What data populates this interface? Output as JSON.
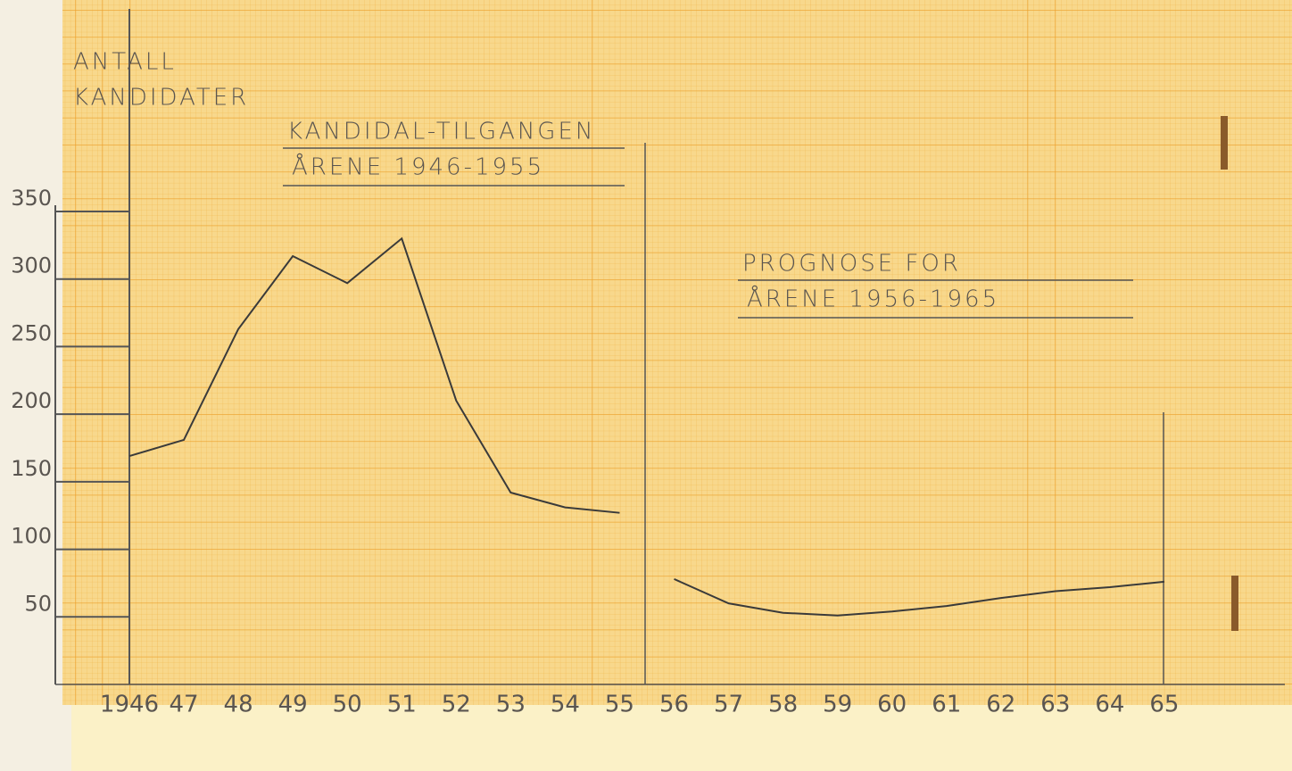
{
  "chart_data": {
    "type": "line",
    "ylabel": [
      "ANTALL",
      "KANDIDATER"
    ],
    "annotations": [
      {
        "lines": [
          "KANDIDAL-TILGANGEN",
          "ÅRENE 1946-1955"
        ]
      },
      {
        "lines": [
          "PROGNOSE FOR",
          "ÅRENE 1956-1965"
        ]
      }
    ],
    "categories": [
      "1946",
      "47",
      "48",
      "49",
      "50",
      "51",
      "52",
      "53",
      "54",
      "55",
      "56",
      "57",
      "58",
      "59",
      "60",
      "61",
      "62",
      "63",
      "64",
      "65"
    ],
    "series": [
      {
        "color": "#3a3a3a",
        "values": [
          169,
          181,
          263,
          317,
          297,
          330,
          210,
          142,
          131,
          127,
          null,
          null,
          null,
          null,
          null,
          null,
          null,
          null,
          null,
          null
        ]
      },
      {
        "color": "#3a3a3a",
        "values": [
          null,
          null,
          null,
          null,
          null,
          null,
          null,
          null,
          null,
          null,
          78,
          60,
          53,
          51,
          54,
          58,
          64,
          69,
          72,
          76
        ]
      }
    ],
    "ylim": [
      0,
      350
    ],
    "yticks": [
      50,
      100,
      150,
      200,
      250,
      300,
      350
    ],
    "grid": true
  }
}
